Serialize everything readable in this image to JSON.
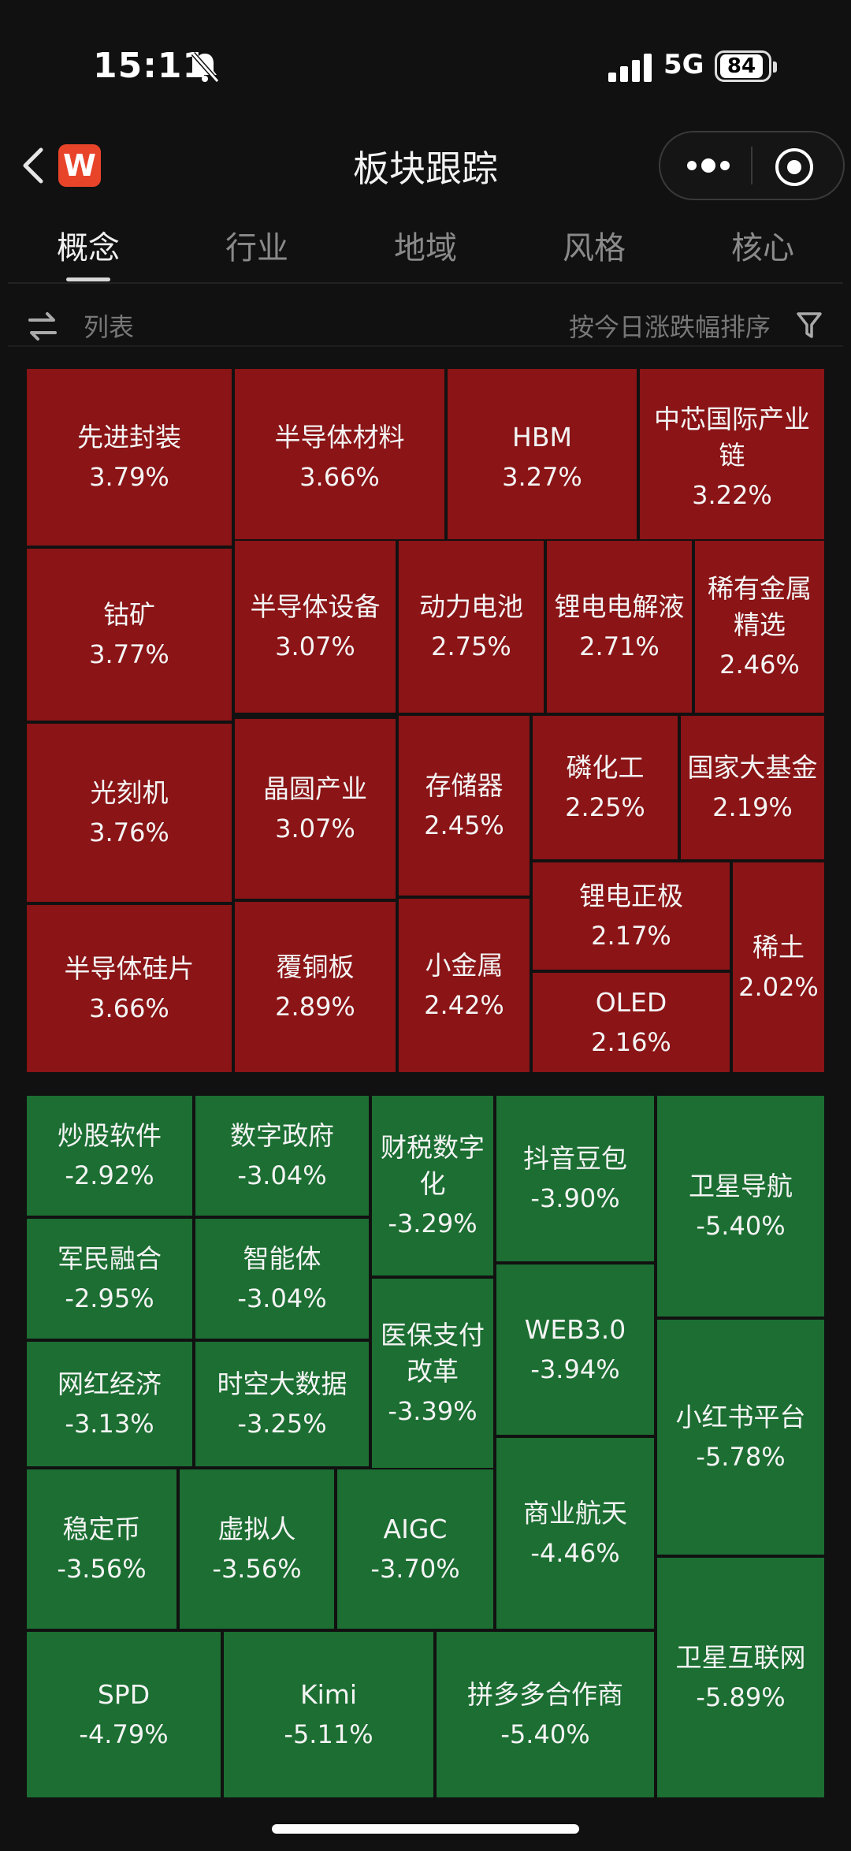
{
  "status_bar": {
    "time": "15:11",
    "network": "5G",
    "battery": "84"
  },
  "header": {
    "title": "板块跟踪",
    "app_logo_letter": "W"
  },
  "tabs": [
    {
      "label": "概念",
      "active": true
    },
    {
      "label": "行业",
      "active": false
    },
    {
      "label": "地域",
      "active": false
    },
    {
      "label": "风格",
      "active": false
    },
    {
      "label": "核心",
      "active": false
    }
  ],
  "toolbar": {
    "list_label": "列表",
    "sort_label": "按今日涨跌幅排序"
  },
  "colors": {
    "up": "#8a1416",
    "down": "#1c6e32",
    "background": "#111111"
  },
  "sectors_up": [
    {
      "name": "先进封装",
      "change": "3.79%"
    },
    {
      "name": "半导体材料",
      "change": "3.66%"
    },
    {
      "name": "HBM",
      "change": "3.27%"
    },
    {
      "name": "中芯国际产业链",
      "change": "3.22%"
    },
    {
      "name": "钴矿",
      "change": "3.77%"
    },
    {
      "name": "半导体设备",
      "change": "3.07%"
    },
    {
      "name": "动力电池",
      "change": "2.75%"
    },
    {
      "name": "锂电电解液",
      "change": "2.71%"
    },
    {
      "name": "稀有金属精选",
      "change": "2.46%"
    },
    {
      "name": "光刻机",
      "change": "3.76%"
    },
    {
      "name": "晶圆产业",
      "change": "3.07%"
    },
    {
      "name": "存储器",
      "change": "2.45%"
    },
    {
      "name": "磷化工",
      "change": "2.25%"
    },
    {
      "name": "国家大基金",
      "change": "2.19%"
    },
    {
      "name": "锂电正极",
      "change": "2.17%"
    },
    {
      "name": "稀土",
      "change": "2.02%"
    },
    {
      "name": "半导体硅片",
      "change": "3.66%"
    },
    {
      "name": "覆铜板",
      "change": "2.89%"
    },
    {
      "name": "小金属",
      "change": "2.42%"
    },
    {
      "name": "OLED",
      "change": "2.16%"
    }
  ],
  "sectors_down": [
    {
      "name": "炒股软件",
      "change": "-2.92%"
    },
    {
      "name": "数字政府",
      "change": "-3.04%"
    },
    {
      "name": "财税数字化",
      "change": "-3.29%"
    },
    {
      "name": "抖音豆包",
      "change": "-3.90%"
    },
    {
      "name": "卫星导航",
      "change": "-5.40%"
    },
    {
      "name": "军民融合",
      "change": "-2.95%"
    },
    {
      "name": "智能体",
      "change": "-3.04%"
    },
    {
      "name": "医保支付改革",
      "change": "-3.39%"
    },
    {
      "name": "WEB3.0",
      "change": "-3.94%"
    },
    {
      "name": "网红经济",
      "change": "-3.13%"
    },
    {
      "name": "时空大数据",
      "change": "-3.25%"
    },
    {
      "name": "小红书平台",
      "change": "-5.78%"
    },
    {
      "name": "稳定币",
      "change": "-3.56%"
    },
    {
      "name": "虚拟人",
      "change": "-3.56%"
    },
    {
      "name": "AIGC",
      "change": "-3.70%"
    },
    {
      "name": "商业航天",
      "change": "-4.46%"
    },
    {
      "name": "SPD",
      "change": "-4.79%"
    },
    {
      "name": "Kimi",
      "change": "-5.11%"
    },
    {
      "name": "拼多多合作商",
      "change": "-5.40%"
    },
    {
      "name": "卫星互联网",
      "change": "-5.89%"
    }
  ]
}
